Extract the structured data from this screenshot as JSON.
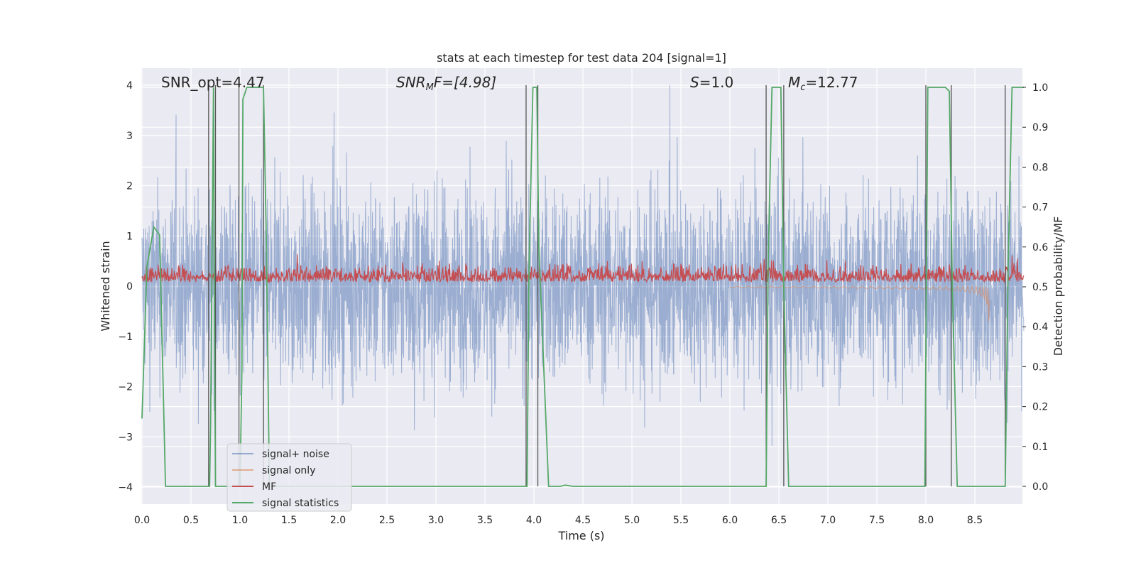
{
  "chart_data": {
    "type": "line",
    "title": "stats at each timestep for test data 204 [signal=1]",
    "xlabel": "Time (s)",
    "ylabel": "Whitened strain",
    "ylabel_right": "Detection probability/MF",
    "xlim": [
      0.0,
      9.0
    ],
    "ylim": [
      -4.3,
      4.4
    ],
    "ylim_right": [
      -0.05,
      1.05
    ],
    "xticks": [
      "0.0",
      "0.5",
      "1.0",
      "1.5",
      "2.0",
      "2.5",
      "3.0",
      "3.5",
      "4.0",
      "4.5",
      "5.0",
      "5.5",
      "6.0",
      "6.5",
      "7.0",
      "7.5",
      "8.0",
      "8.5"
    ],
    "yticks_left": [
      "4",
      "3",
      "2",
      "1",
      "0",
      "−1",
      "−2",
      "−3",
      "−4"
    ],
    "yticks_right": [
      "1.0",
      "0.9",
      "0.8",
      "0.7",
      "0.6",
      "0.5",
      "0.4",
      "0.3",
      "0.2",
      "0.1",
      "0.0"
    ],
    "grid": true,
    "legend_position": "lower-left",
    "annotations": {
      "snr_opt": "SNR_opt=4.47",
      "snr_mf_prefix": "SNR",
      "snr_mf_sub": "M",
      "snr_mf_rest": "F=[4.98]",
      "s_var": "S",
      "s_rest": "=1.0",
      "mc_var": "M",
      "mc_sub": "c",
      "mc_rest": "=12.77"
    },
    "series": [
      {
        "name": "signal+ noise",
        "color": "#4c72b0",
        "envelope_typical": 2.0,
        "peak_max": 4.0,
        "peak_min": -3.9
      },
      {
        "name": "signal only",
        "color": "#dd8452",
        "chirp_end_time": 8.65,
        "chirp_min": -0.9
      },
      {
        "name": "MF",
        "color": "#c44e52",
        "baseline": 0.5,
        "typical_max": 0.56,
        "peak_max": 0.62
      },
      {
        "name": "signal statistics",
        "color": "#55a868",
        "x": [
          0.0,
          0.05,
          0.12,
          0.18,
          0.24,
          0.69,
          0.7,
          0.73,
          0.74,
          0.75,
          0.8,
          1.0,
          1.02,
          1.03,
          1.07,
          1.24,
          1.27,
          1.3,
          3.93,
          3.95,
          3.99,
          4.03,
          4.05,
          4.15,
          4.2,
          4.27,
          4.32,
          4.4,
          6.37,
          6.39,
          6.43,
          6.52,
          6.55,
          6.6,
          7.99,
          8.02,
          8.2,
          8.24,
          8.27,
          8.32,
          8.81,
          8.84,
          8.88,
          9.0
        ],
        "y": [
          0.17,
          0.55,
          0.65,
          0.63,
          0.0,
          0.0,
          0.15,
          1.0,
          0.4,
          0.0,
          0.0,
          0.0,
          0.3,
          0.97,
          1.0,
          1.0,
          0.6,
          0.0,
          0.0,
          0.55,
          1.0,
          1.0,
          0.6,
          0.0,
          0.0,
          0.0,
          0.003,
          0.0,
          0.0,
          0.55,
          1.0,
          1.0,
          0.5,
          0.0,
          0.0,
          1.0,
          1.0,
          0.99,
          0.5,
          0.0,
          0.0,
          0.55,
          1.0,
          1.0
        ]
      },
      {
        "name": "vertical-markers",
        "color": "#555555",
        "x": [
          0.68,
          0.75,
          0.99,
          1.24,
          3.92,
          4.04,
          6.37,
          6.55,
          8.0,
          8.26,
          8.81
        ]
      }
    ]
  }
}
